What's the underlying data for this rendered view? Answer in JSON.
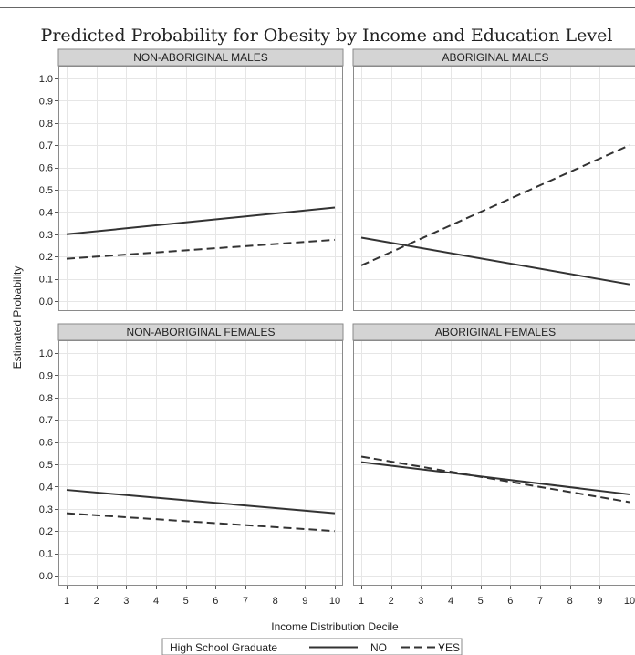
{
  "chart_data": {
    "type": "line",
    "title": "Predicted Probability for Obesity by Income and Education Level",
    "xlabel": "Income Distribution Decile",
    "ylabel": "Estimated Probability",
    "xlim": [
      1,
      10
    ],
    "ylim": [
      0.0,
      1.0
    ],
    "x_ticks": [
      1,
      2,
      3,
      4,
      5,
      6,
      7,
      8,
      9,
      10
    ],
    "y_ticks": [
      0.0,
      0.1,
      0.2,
      0.3,
      0.4,
      0.5,
      0.6,
      0.7,
      0.8,
      0.9,
      1.0
    ],
    "y_tick_labels": [
      "0.0",
      "0.1",
      "0.2",
      "0.3",
      "0.4",
      "0.5",
      "0.6",
      "0.7",
      "0.8",
      "0.9",
      "1.0"
    ],
    "grid": true,
    "legend": {
      "title": "High School Graduate",
      "position": "bottom",
      "entries": [
        {
          "name": "NO",
          "style": "solid"
        },
        {
          "name": "YES",
          "style": "dashed"
        }
      ]
    },
    "line_color": "#333333",
    "panels": [
      {
        "title": "NON-ABORIGINAL MALES",
        "series": [
          {
            "name": "NO",
            "x": [
              1,
              10
            ],
            "y": [
              0.3,
              0.42
            ]
          },
          {
            "name": "YES",
            "x": [
              1,
              10
            ],
            "y": [
              0.19,
              0.275
            ]
          }
        ]
      },
      {
        "title": "ABORIGINAL MALES",
        "series": [
          {
            "name": "NO",
            "x": [
              1,
              10
            ],
            "y": [
              0.285,
              0.075
            ]
          },
          {
            "name": "YES",
            "x": [
              1,
              10
            ],
            "y": [
              0.16,
              0.7
            ]
          }
        ]
      },
      {
        "title": "NON-ABORIGINAL FEMALES",
        "series": [
          {
            "name": "NO",
            "x": [
              1,
              10
            ],
            "y": [
              0.385,
              0.28
            ]
          },
          {
            "name": "YES",
            "x": [
              1,
              10
            ],
            "y": [
              0.28,
              0.2
            ]
          }
        ]
      },
      {
        "title": "ABORIGINAL FEMALES",
        "series": [
          {
            "name": "NO",
            "x": [
              1,
              10
            ],
            "y": [
              0.51,
              0.365
            ]
          },
          {
            "name": "YES",
            "x": [
              1,
              10
            ],
            "y": [
              0.535,
              0.33
            ]
          }
        ]
      }
    ]
  }
}
